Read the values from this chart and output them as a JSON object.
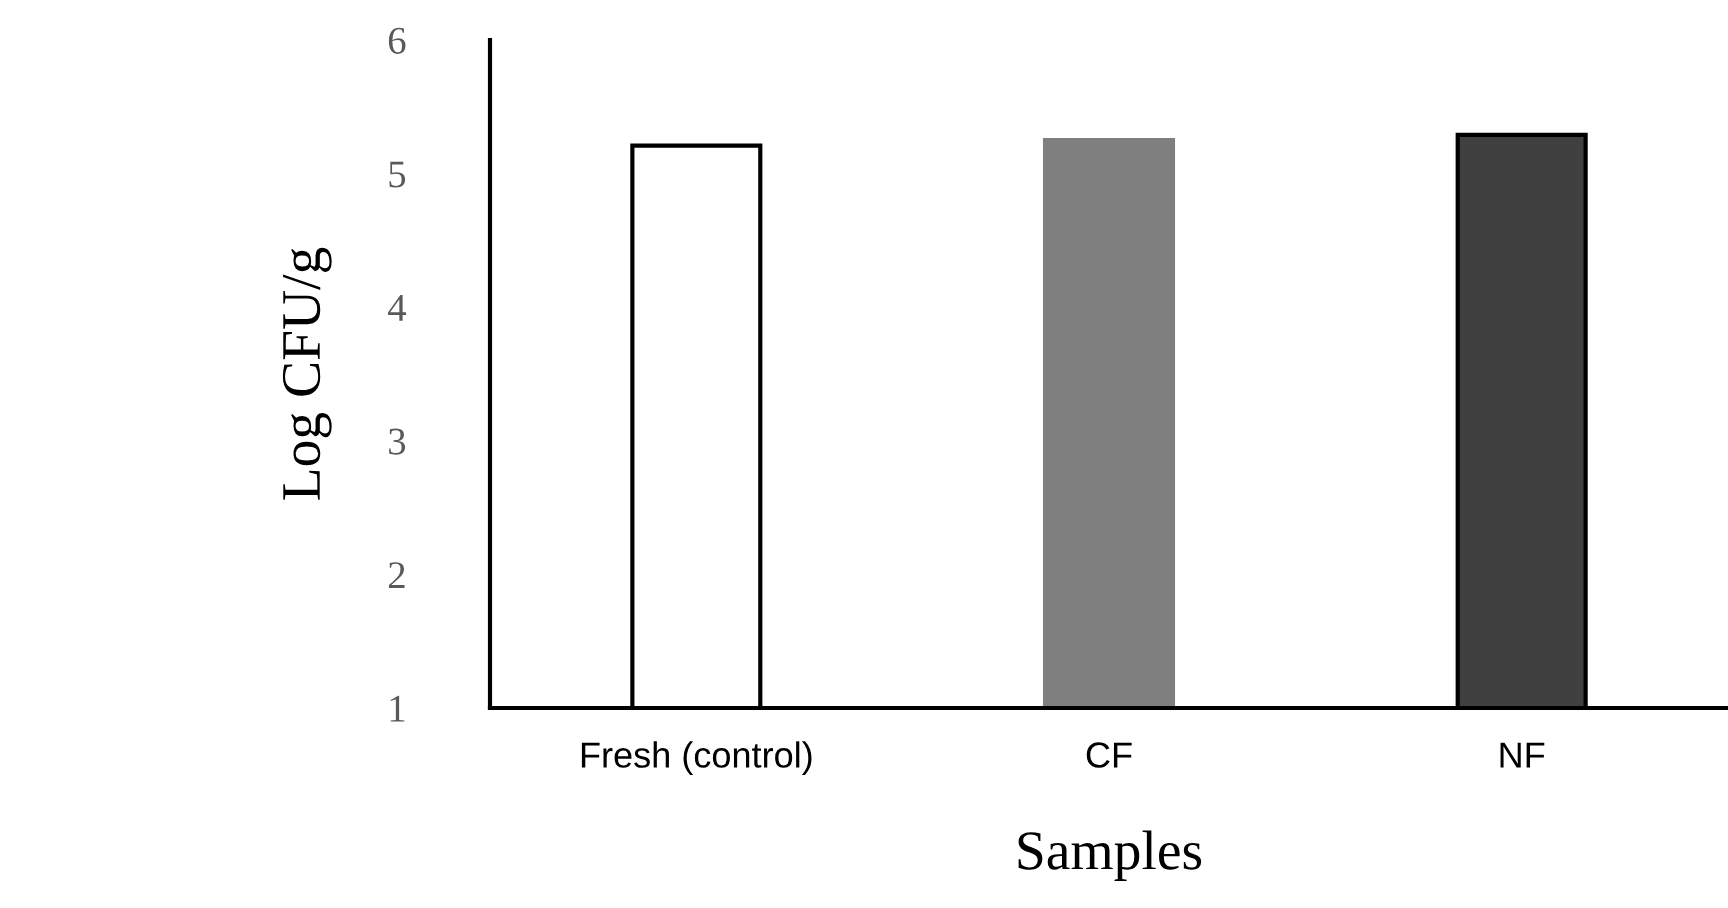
{
  "chart_data": {
    "type": "bar",
    "xlabel": "Samples",
    "ylabel": "Log CFU/g",
    "categories": [
      "Fresh (control)",
      "CF",
      "NF"
    ],
    "values": [
      5.21,
      5.25,
      5.29
    ],
    "colors": [
      "#ffffff",
      "#7f7f7f",
      "#404040"
    ],
    "ylim": [
      1,
      6
    ],
    "yticks": [
      1,
      2,
      3,
      4,
      5,
      6
    ],
    "grid": false,
    "legend": false
  }
}
